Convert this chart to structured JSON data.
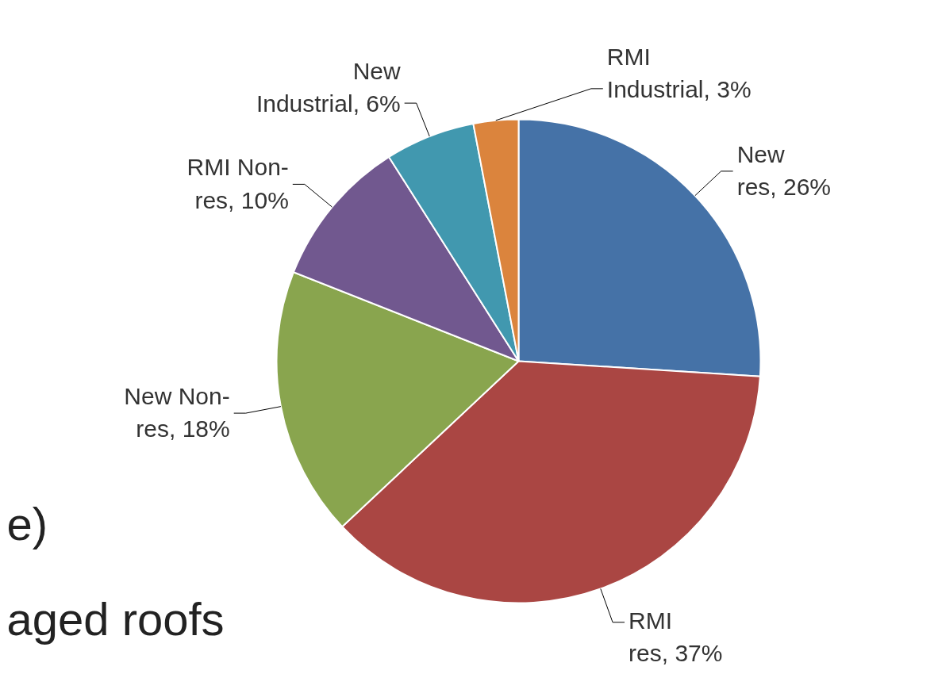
{
  "chart_data": {
    "type": "pie",
    "categories": [
      "New res",
      "RMI res",
      "New Non-res",
      "RMI Non-res",
      "New Industrial",
      "RMI Industrial"
    ],
    "values": [
      26,
      37,
      18,
      10,
      6,
      3
    ],
    "colors": [
      "#4572a7",
      "#aa4643",
      "#89a54e",
      "#71588f",
      "#4198af",
      "#db843d"
    ],
    "value_labels": [
      "26%",
      "37%",
      "18%",
      "10%",
      "6%",
      "3%"
    ],
    "annotations": [
      "e)",
      "aged roofs"
    ]
  }
}
